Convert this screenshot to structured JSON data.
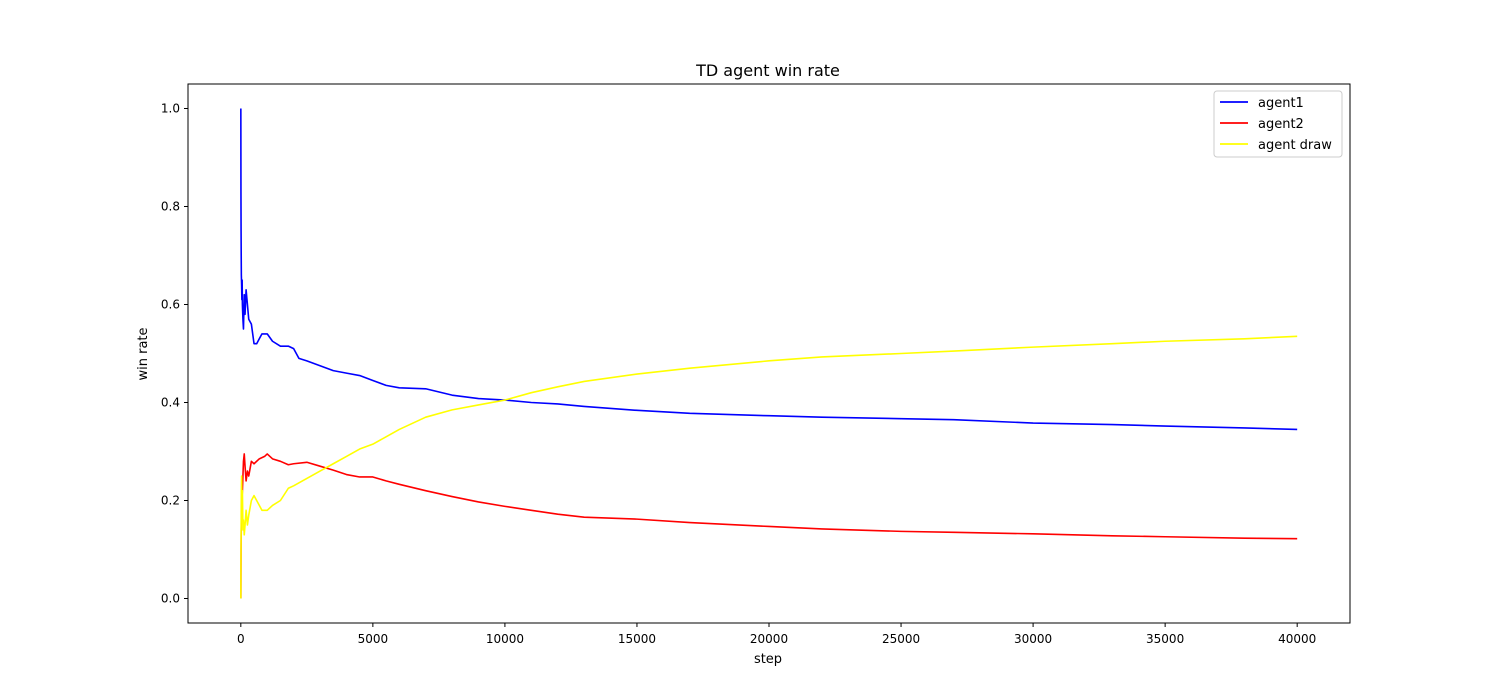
{
  "chart_data": {
    "type": "line",
    "title": "TD agent win rate",
    "xlabel": "step",
    "ylabel": "win rate",
    "xlim": [
      -2000,
      42000
    ],
    "ylim": [
      -0.05,
      1.05
    ],
    "xticks": [
      0,
      5000,
      10000,
      15000,
      20000,
      25000,
      30000,
      35000,
      40000
    ],
    "xtick_labels": [
      "0",
      "5000",
      "10000",
      "15000",
      "20000",
      "25000",
      "30000",
      "35000",
      "40000"
    ],
    "yticks": [
      0.0,
      0.2,
      0.4,
      0.6,
      0.8,
      1.0
    ],
    "ytick_labels": [
      "0.0",
      "0.2",
      "0.4",
      "0.6",
      "0.8",
      "1.0"
    ],
    "grid": false,
    "legend_position": "top-right",
    "series": [
      {
        "name": "agent1",
        "color": "#0000ff",
        "x": [
          1,
          5,
          10,
          15,
          20,
          30,
          40,
          50,
          60,
          80,
          100,
          130,
          160,
          200,
          250,
          300,
          400,
          500,
          600,
          700,
          800,
          1000,
          1200,
          1500,
          1800,
          2000,
          2200,
          2500,
          3000,
          3500,
          4000,
          4500,
          5000,
          5500,
          6000,
          7000,
          8000,
          9000,
          10000,
          11000,
          12000,
          13000,
          15000,
          17000,
          20000,
          22000,
          25000,
          27000,
          30000,
          33000,
          35000,
          38000,
          40000
        ],
        "y": [
          1.0,
          0.83,
          0.75,
          0.7,
          0.66,
          0.64,
          0.61,
          0.65,
          0.6,
          0.57,
          0.55,
          0.62,
          0.58,
          0.63,
          0.6,
          0.57,
          0.56,
          0.52,
          0.52,
          0.53,
          0.54,
          0.54,
          0.525,
          0.515,
          0.515,
          0.51,
          0.49,
          0.485,
          0.475,
          0.465,
          0.46,
          0.455,
          0.445,
          0.435,
          0.43,
          0.428,
          0.415,
          0.408,
          0.405,
          0.4,
          0.397,
          0.392,
          0.384,
          0.378,
          0.373,
          0.37,
          0.367,
          0.365,
          0.358,
          0.355,
          0.352,
          0.348,
          0.345
        ]
      },
      {
        "name": "agent2",
        "color": "#ff0000",
        "x": [
          1,
          5,
          10,
          20,
          30,
          40,
          60,
          80,
          100,
          130,
          160,
          200,
          250,
          300,
          400,
          500,
          700,
          900,
          1000,
          1200,
          1500,
          1800,
          2000,
          2500,
          3000,
          3500,
          4000,
          4500,
          5000,
          5500,
          6000,
          7000,
          8000,
          9000,
          10000,
          11000,
          12000,
          13000,
          15000,
          17000,
          20000,
          22000,
          25000,
          27000,
          30000,
          33000,
          35000,
          38000,
          40000
        ],
        "y": [
          0.0,
          0.05,
          0.1,
          0.16,
          0.18,
          0.2,
          0.22,
          0.25,
          0.28,
          0.295,
          0.27,
          0.24,
          0.26,
          0.25,
          0.28,
          0.275,
          0.285,
          0.29,
          0.295,
          0.285,
          0.28,
          0.273,
          0.275,
          0.278,
          0.27,
          0.262,
          0.253,
          0.248,
          0.248,
          0.24,
          0.233,
          0.22,
          0.208,
          0.197,
          0.188,
          0.18,
          0.172,
          0.166,
          0.162,
          0.155,
          0.147,
          0.142,
          0.137,
          0.135,
          0.132,
          0.128,
          0.126,
          0.123,
          0.122
        ]
      },
      {
        "name": "agent draw",
        "color": "#ffff00",
        "x": [
          1,
          5,
          10,
          15,
          20,
          30,
          40,
          60,
          80,
          100,
          130,
          160,
          200,
          250,
          300,
          400,
          500,
          600,
          700,
          800,
          1000,
          1200,
          1500,
          1800,
          2000,
          2500,
          3000,
          3500,
          4000,
          4500,
          5000,
          5500,
          6000,
          7000,
          8000,
          9000,
          10000,
          11000,
          12000,
          13000,
          15000,
          17000,
          20000,
          22000,
          25000,
          27000,
          30000,
          33000,
          35000,
          38000,
          40000
        ],
        "y": [
          0.0,
          0.07,
          0.12,
          0.17,
          0.22,
          0.25,
          0.2,
          0.22,
          0.14,
          0.16,
          0.13,
          0.15,
          0.18,
          0.15,
          0.17,
          0.2,
          0.21,
          0.2,
          0.19,
          0.18,
          0.18,
          0.19,
          0.2,
          0.225,
          0.23,
          0.245,
          0.26,
          0.275,
          0.29,
          0.305,
          0.315,
          0.33,
          0.345,
          0.37,
          0.385,
          0.395,
          0.405,
          0.42,
          0.432,
          0.443,
          0.458,
          0.47,
          0.485,
          0.493,
          0.5,
          0.505,
          0.513,
          0.52,
          0.525,
          0.53,
          0.535
        ]
      }
    ]
  }
}
